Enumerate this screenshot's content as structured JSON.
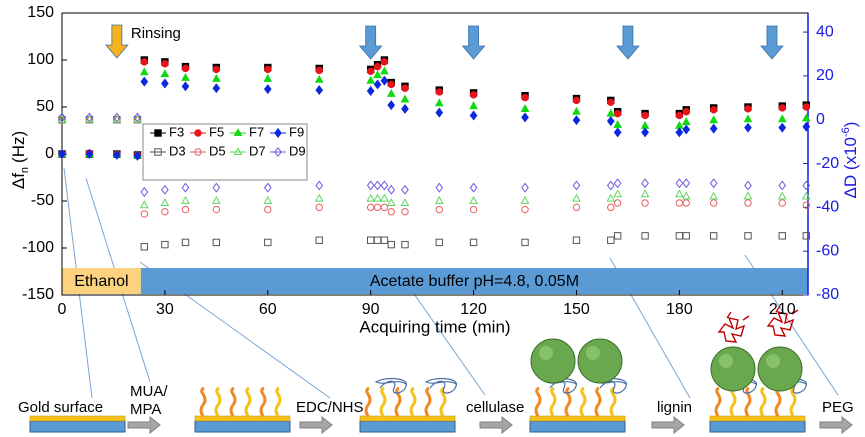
{
  "chart_data": {
    "type": "scatter",
    "x_label": "Acquiring time (min)",
    "y_label": "Δf",
    "y_label_sub": "n",
    "y_label_unit": "(Hz)",
    "y2_label": "ΔD (x10",
    "y2_label_sup": "-6",
    "y2_label_end": ")",
    "xlim": [
      0,
      217.5
    ],
    "xticks": [
      0,
      30,
      60,
      90,
      120,
      150,
      180,
      210
    ],
    "ylim": [
      -150,
      150
    ],
    "yticks": [
      -150,
      -100,
      -50,
      0,
      50,
      100,
      150
    ],
    "y2lim": [
      -80,
      48.7
    ],
    "y2ticks": [
      -80,
      -60,
      -40,
      -20,
      0,
      20,
      40
    ],
    "x": [
      0,
      8,
      16,
      22,
      24,
      30,
      36,
      45,
      60,
      75,
      90,
      92,
      94,
      96,
      100,
      110,
      120,
      135,
      150,
      160,
      162,
      170,
      180,
      182,
      190,
      200,
      210,
      217
    ],
    "series": [
      {
        "name": "F3",
        "color": "#000000",
        "marker": "square",
        "filled": true,
        "values": [
          0,
          0,
          0,
          -1,
          100,
          98,
          93,
          92,
          92,
          91,
          90,
          95,
          100,
          76,
          72,
          68,
          65,
          62,
          59,
          57,
          45,
          43,
          43,
          47,
          49,
          50,
          51,
          52
        ]
      },
      {
        "name": "F5",
        "color": "#e8141b",
        "marker": "circle",
        "filled": true,
        "values": [
          0,
          1,
          0,
          -1,
          98,
          96,
          91,
          90,
          90,
          89,
          88,
          93,
          98,
          74,
          70,
          66,
          63,
          60,
          57,
          55,
          43,
          41,
          41,
          45,
          47,
          48,
          49,
          50
        ]
      },
      {
        "name": "F7",
        "color": "#12d812",
        "marker": "triangle",
        "filled": true,
        "values": [
          0,
          0,
          0,
          -1,
          87,
          85,
          81,
          80,
          80,
          79,
          78,
          84,
          88,
          64,
          58,
          54,
          51,
          48,
          45,
          43,
          31,
          30,
          30,
          34,
          36,
          37,
          37,
          38
        ]
      },
      {
        "name": "F9",
        "color": "#0a28e0",
        "marker": "diamond",
        "filled": true,
        "values": [
          0,
          0,
          -1,
          -2,
          77,
          75,
          72,
          70,
          69,
          68,
          67,
          74,
          78,
          52,
          48,
          44,
          41,
          39,
          36,
          35,
          23,
          23,
          23,
          26,
          27,
          28,
          28,
          29
        ]
      },
      {
        "name": "D3",
        "color": "#555555",
        "marker": "square",
        "filled": false,
        "axis": "y2",
        "values": [
          0,
          0,
          0,
          0,
          -58,
          -57,
          -56,
          -56,
          -56,
          -55,
          -55,
          -55,
          -55,
          -57,
          -57,
          -56,
          -56,
          -56,
          -55,
          -55,
          -53,
          -53,
          -53,
          -53,
          -53,
          -53,
          -53,
          -53
        ]
      },
      {
        "name": "D5",
        "color": "#e86060",
        "marker": "circle",
        "filled": false,
        "axis": "y2",
        "values": [
          0,
          0,
          0,
          0,
          -43,
          -42,
          -41,
          -41,
          -41,
          -40,
          -40,
          -40,
          -40,
          -42,
          -42,
          -41,
          -41,
          -41,
          -40,
          -40,
          -38,
          -38,
          -38,
          -38,
          -38,
          -38,
          -38,
          -39
        ]
      },
      {
        "name": "D7",
        "color": "#5ad85a",
        "marker": "triangle",
        "filled": false,
        "axis": "y2",
        "values": [
          0,
          0,
          0,
          0,
          -39,
          -38,
          -37,
          -37,
          -37,
          -36,
          -36,
          -36,
          -36,
          -38,
          -38,
          -37,
          -37,
          -37,
          -36,
          -36,
          -34,
          -34,
          -34,
          -35,
          -35,
          -35,
          -35,
          -35
        ]
      },
      {
        "name": "D9",
        "color": "#6a5ae0",
        "marker": "diamond",
        "filled": false,
        "axis": "y2",
        "values": [
          1,
          1,
          1,
          1,
          -33,
          -32,
          -31,
          -31,
          -31,
          -30,
          -30,
          -30,
          -30,
          -32,
          -32,
          -31,
          -31,
          -31,
          -30,
          -30,
          -29,
          -29,
          -29,
          -29,
          -29,
          -30,
          -30,
          -30
        ]
      }
    ],
    "phases": [
      {
        "label": "Ethanol",
        "start": 0,
        "end": 23,
        "color": "#fcd27e"
      },
      {
        "label": "Acetate buffer pH=4.8, 0.05M",
        "start": 23,
        "end": 217.5,
        "color": "#5b9bd5"
      }
    ],
    "rinsing": {
      "label": "Rinsing",
      "x": 16,
      "color": "#f5b21f"
    },
    "arrows_x": [
      90,
      120,
      165,
      207
    ],
    "arrow_color": "#5b9bd5",
    "steps": [
      "Gold surface",
      "MUA/",
      "MPA",
      "EDC/NHS",
      "cellulase",
      "lignin",
      "PEG"
    ]
  }
}
